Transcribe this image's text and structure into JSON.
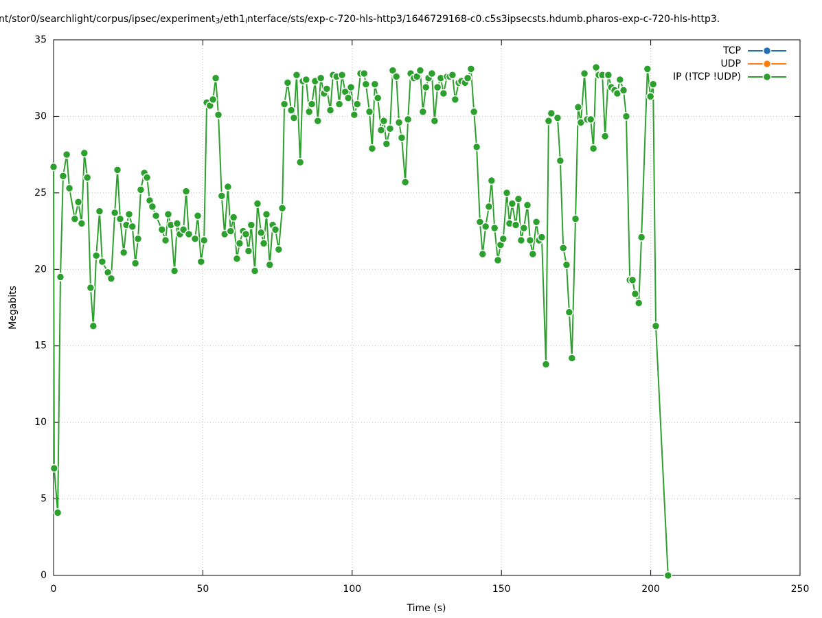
{
  "chart_data": {
    "type": "line",
    "title": [
      "nt/stor0/searchlight/corpus/ipsec/experiment",
      "3",
      "/eth1",
      "i",
      "nterface/sts/exp-c-720-hls-http3/1646729168-c0.c5s3ipsecsts.hdumb.pharos-exp-c-720-hls-http3."
    ],
    "xlabel": "Time (s)",
    "ylabel": "Megabits",
    "xlim": [
      0,
      250
    ],
    "ylim": [
      0,
      35
    ],
    "xticks": [
      0,
      50,
      100,
      150,
      200,
      250
    ],
    "yticks": [
      0,
      5,
      10,
      15,
      20,
      25,
      30,
      35
    ],
    "grid": true,
    "legend": "top-right",
    "x": [
      0,
      0.2,
      1.4,
      2.3,
      3.2,
      4.4,
      5.3,
      7.1,
      8.3,
      9.4,
      10.3,
      11.3,
      12.4,
      13.3,
      14.3,
      15.4,
      16.3,
      18.2,
      19.3,
      20.5,
      21.4,
      22.3,
      23.5,
      24.4,
      25.3,
      26.4,
      27.4,
      28.3,
      29.2,
      30.4,
      31.3,
      32.2,
      33.1,
      34.3,
      36.3,
      37.5,
      38.4,
      39.3,
      40.5,
      41.4,
      42.3,
      43.5,
      44.4,
      45.3,
      47.4,
      48.3,
      49.4,
      50.4,
      51.3,
      52.4,
      53.4,
      54.3,
      55.2,
      56.3,
      57.3,
      58.4,
      59.3,
      60.3,
      61.4,
      62.3,
      63.5,
      64.4,
      65.3,
      66.2,
      67.4,
      68.3,
      69.5,
      70.4,
      71.3,
      72.4,
      73.4,
      74.3,
      75.4,
      76.6,
      77.3,
      78.4,
      79.6,
      80.5,
      81.4,
      82.6,
      83.5,
      84.6,
      85.6,
      86.5,
      87.6,
      88.5,
      89.5,
      90.6,
      91.5,
      92.7,
      93.6,
      94.8,
      95.7,
      96.6,
      97.7,
      98.7,
      99.6,
      100.7,
      101.7,
      102.8,
      104.0,
      104.6,
      105.8,
      106.7,
      107.6,
      108.6,
      109.7,
      110.6,
      111.5,
      112.7,
      113.6,
      114.8,
      115.7,
      116.6,
      117.8,
      118.7,
      119.6,
      120.7,
      121.7,
      122.8,
      123.7,
      124.7,
      125.6,
      126.7,
      127.6,
      128.6,
      129.7,
      130.6,
      131.8,
      132.7,
      133.6,
      134.5,
      135.7,
      136.6,
      137.8,
      138.7,
      139.8,
      140.8,
      141.7,
      142.8,
      143.7,
      144.7,
      145.8,
      146.7,
      147.7,
      148.8,
      149.7,
      150.6,
      151.8,
      152.7,
      153.6,
      154.8,
      155.7,
      156.6,
      157.5,
      158.7,
      159.6,
      160.5,
      161.7,
      162.6,
      163.5,
      164.9,
      165.8,
      166.7,
      168.8,
      169.7,
      170.7,
      171.8,
      172.7,
      173.6,
      174.8,
      175.7,
      176.6,
      177.8,
      178.7,
      179.9,
      180.8,
      181.7,
      182.6,
      183.8,
      184.7,
      185.8,
      186.8,
      187.9,
      188.8,
      189.7,
      190.9,
      191.8,
      193.0,
      193.9,
      194.8,
      196.0,
      196.9,
      198.9,
      199.9,
      200.8,
      201.7,
      205.8
    ],
    "series": [
      {
        "name": "TCP",
        "color": "#1f6fb4"
      },
      {
        "name": "UDP",
        "color": "#ff7f0e"
      },
      {
        "name": "IP (!TCP  !UDP)",
        "color": "#2ca02c",
        "values": [
          26.7,
          7.0,
          4.1,
          19.5,
          26.1,
          27.5,
          25.3,
          23.3,
          24.4,
          23.0,
          27.6,
          26.0,
          18.8,
          16.3,
          20.9,
          23.8,
          20.5,
          19.8,
          19.4,
          23.7,
          26.5,
          23.3,
          21.1,
          22.9,
          23.6,
          22.8,
          20.4,
          22.0,
          25.2,
          26.3,
          26.0,
          24.5,
          24.1,
          23.5,
          22.6,
          21.9,
          23.6,
          22.9,
          19.9,
          23.0,
          22.3,
          22.6,
          25.1,
          22.3,
          22.0,
          23.5,
          20.5,
          21.9,
          30.9,
          30.7,
          31.1,
          32.5,
          30.1,
          24.8,
          22.3,
          25.4,
          22.5,
          23.4,
          20.7,
          21.7,
          22.5,
          22.3,
          21.2,
          22.9,
          19.9,
          24.3,
          22.4,
          21.7,
          23.6,
          20.3,
          22.9,
          22.6,
          21.3,
          24.0,
          30.8,
          32.2,
          30.4,
          29.9,
          32.7,
          27.0,
          32.3,
          32.4,
          30.3,
          30.8,
          32.3,
          29.7,
          32.5,
          31.5,
          31.8,
          30.4,
          32.7,
          32.6,
          30.8,
          32.7,
          31.6,
          31.2,
          31.9,
          30.1,
          30.8,
          32.8,
          32.8,
          32.1,
          30.3,
          27.9,
          32.1,
          31.2,
          29.1,
          29.7,
          28.2,
          29.2,
          33.0,
          32.6,
          29.6,
          28.6,
          25.7,
          29.8,
          32.8,
          32.5,
          32.6,
          33.0,
          30.3,
          31.9,
          32.5,
          32.8,
          29.7,
          31.9,
          32.5,
          31.5,
          32.6,
          32.6,
          32.7,
          31.1,
          32.2,
          32.3,
          32.2,
          32.5,
          33.1,
          30.3,
          28.0,
          23.1,
          21.0,
          22.8,
          24.1,
          25.8,
          22.7,
          20.6,
          21.6,
          22.0,
          25.0,
          23.0,
          24.3,
          22.9,
          24.6,
          21.9,
          22.7,
          24.2,
          21.9,
          21.0,
          23.1,
          21.9,
          22.1,
          13.8,
          29.7,
          30.2,
          29.9,
          27.1,
          21.4,
          20.3,
          17.2,
          14.2,
          23.3,
          30.6,
          29.6,
          32.8,
          29.8,
          29.8,
          27.9,
          33.2,
          32.7,
          32.7,
          28.7,
          32.7,
          31.9,
          31.7,
          31.5,
          32.4,
          31.7,
          30.0,
          19.3,
          19.3,
          18.4,
          17.8,
          22.1,
          33.1,
          31.3,
          32.1,
          16.3,
          0
        ]
      }
    ]
  }
}
